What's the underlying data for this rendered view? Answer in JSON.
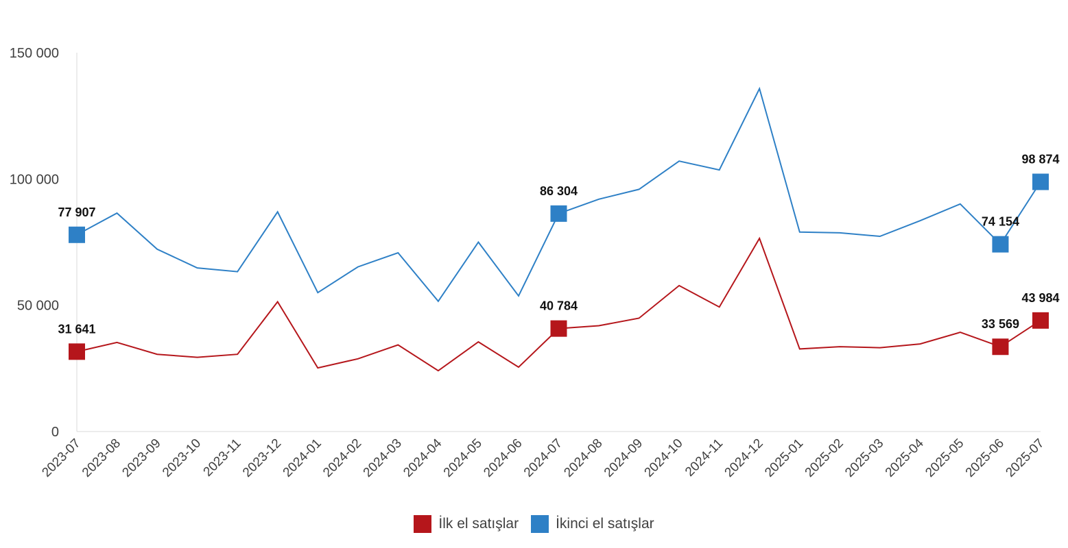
{
  "chart_data": {
    "type": "line",
    "categories": [
      "2023-07",
      "2023-08",
      "2023-09",
      "2023-10",
      "2023-11",
      "2023-12",
      "2024-01",
      "2024-02",
      "2024-03",
      "2024-04",
      "2024-05",
      "2024-06",
      "2024-07",
      "2024-08",
      "2024-09",
      "2024-10",
      "2024-11",
      "2024-12",
      "2025-01",
      "2025-02",
      "2025-03",
      "2025-04",
      "2025-05",
      "2025-06",
      "2025-07"
    ],
    "ylim": [
      0,
      150000
    ],
    "yticks": [
      0,
      50000,
      100000,
      150000
    ],
    "ytick_labels": [
      "0",
      "50 000",
      "100 000",
      "150 000"
    ],
    "grid": false,
    "legend_position": "bottom-center",
    "series": [
      {
        "name": "İlk el satışlar",
        "color": "#b5161b",
        "values": [
          31641,
          35300,
          30600,
          29400,
          30600,
          51400,
          25200,
          28800,
          34300,
          24100,
          35500,
          25500,
          40784,
          41900,
          44900,
          57800,
          49300,
          76500,
          32700,
          33600,
          33200,
          34700,
          39300,
          33569,
          43984
        ],
        "labels": {
          "0": "31 641",
          "12": "40 784",
          "23": "33 569",
          "24": "43 984"
        }
      },
      {
        "name": "İkinci el satışlar",
        "color": "#2e80c6",
        "values": [
          77907,
          86500,
          72200,
          64800,
          63300,
          87000,
          55000,
          65200,
          70800,
          51600,
          75000,
          53700,
          86304,
          92000,
          95900,
          107100,
          103600,
          135800,
          79000,
          78700,
          77300,
          83500,
          90100,
          74154,
          98874
        ],
        "labels": {
          "0": "77 907",
          "12": "86 304",
          "23": "74 154",
          "24": "98 874"
        }
      }
    ]
  }
}
